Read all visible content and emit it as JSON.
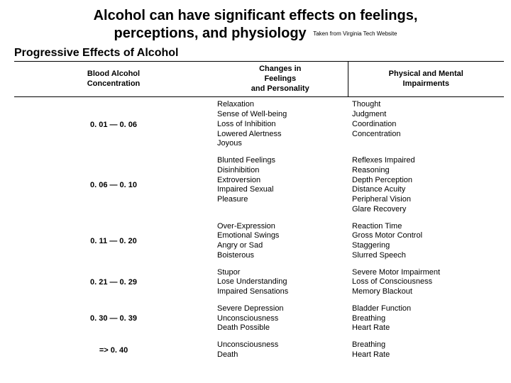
{
  "title_line1": "Alcohol can have significant effects on feelings,",
  "title_line2_a": "perceptions, and physiology",
  "source_note": "Taken from Virginia Tech Website",
  "subtitle": "Progressive Effects of Alcohol",
  "headers": {
    "bac": "Blood Alcohol\nConcentration",
    "feelings": "Changes in\nFeelings\nand Personality",
    "impair": "Physical and Mental\nImpairments"
  },
  "rows": [
    {
      "bac": "0. 01 — 0. 06",
      "feelings": "Relaxation\nSense of Well-being\nLoss of Inhibition\nLowered Alertness\nJoyous",
      "impair": "Thought\nJudgment\nCoordination\nConcentration"
    },
    {
      "bac": "0. 06 — 0. 10",
      "feelings": "Blunted Feelings\nDisinhibition\nExtroversion\nImpaired Sexual\nPleasure",
      "impair": "Reflexes Impaired\nReasoning\nDepth Perception\nDistance Acuity\nPeripheral Vision\nGlare Recovery"
    },
    {
      "bac": "0. 11 — 0. 20",
      "feelings": "Over-Expression\nEmotional Swings\nAngry or Sad\nBoisterous",
      "impair": "Reaction Time\nGross Motor Control\nStaggering\nSlurred Speech"
    },
    {
      "bac": "0. 21 — 0. 29",
      "feelings": "Stupor\nLose Understanding\nImpaired Sensations",
      "impair": "Severe Motor Impairment\nLoss of Consciousness\nMemory Blackout"
    },
    {
      "bac": "0. 30 — 0. 39",
      "feelings": "Severe Depression\nUnconsciousness\nDeath Possible",
      "impair": "Bladder Function\nBreathing\nHeart Rate"
    },
    {
      "bac": "=> 0. 40",
      "feelings": "Unconsciousness\nDeath",
      "impair": "Breathing\nHeart Rate"
    }
  ]
}
